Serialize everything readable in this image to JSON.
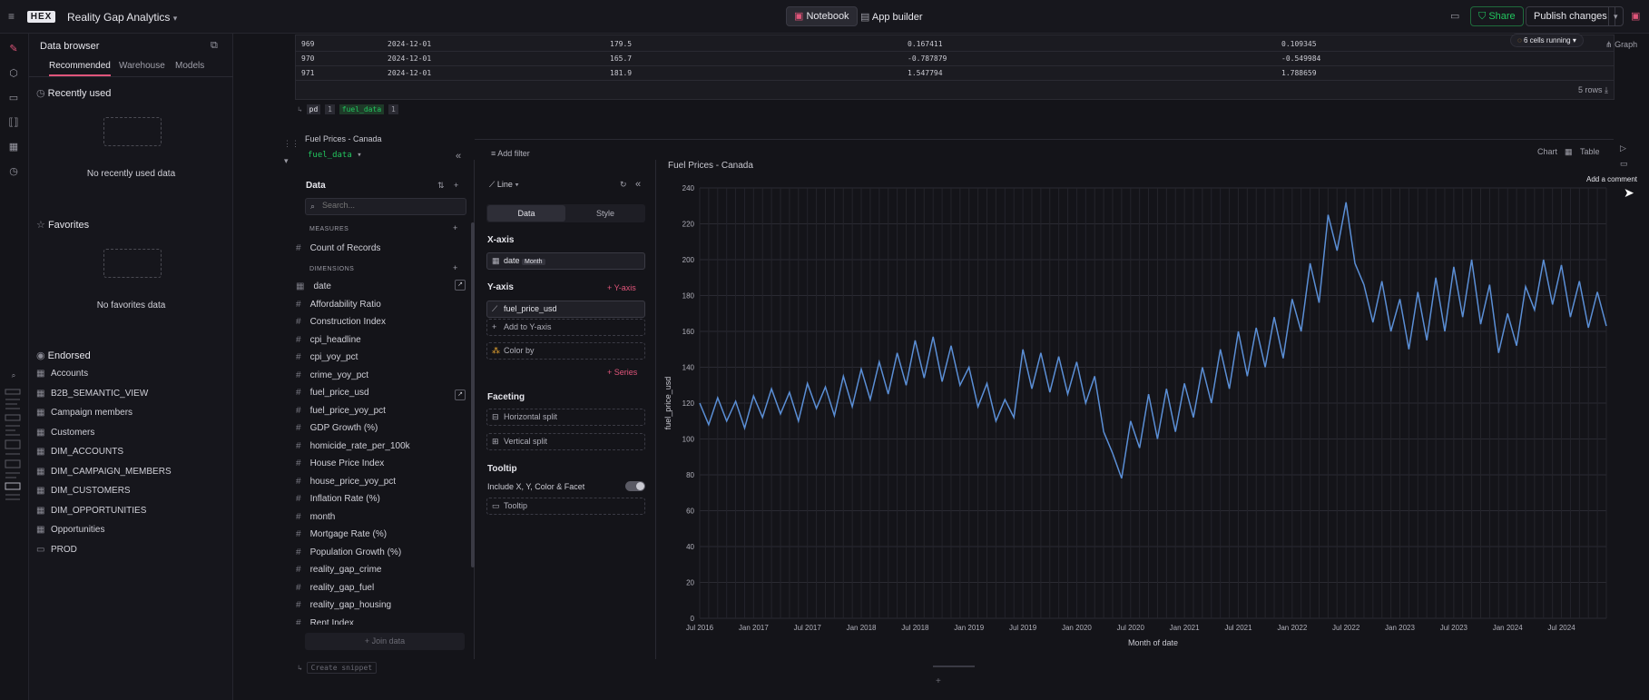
{
  "topbar": {
    "app_title": "Reality Gap Analytics",
    "logo": "HEX",
    "notebook_tab": "Notebook",
    "app_builder_tab": "App builder",
    "share_label": "Share",
    "publish_label": "Publish changes",
    "accent": "#22c55e"
  },
  "sidebar": {
    "title": "Data browser",
    "tabs": [
      "Recommended",
      "Warehouse",
      "Models"
    ],
    "recently_used": "Recently used",
    "no_recent": "No recently used data",
    "favorites": "Favorites",
    "no_favorites": "No favorites data",
    "endorsed": "Endorsed",
    "endorsed_items": [
      "Accounts",
      "B2B_SEMANTIC_VIEW",
      "Campaign members",
      "Customers",
      "DIM_ACCOUNTS",
      "DIM_CAMPAIGN_MEMBERS",
      "DIM_CUSTOMERS",
      "DIM_OPPORTUNITIES",
      "Opportunities",
      "PROD"
    ]
  },
  "table": {
    "rows": [
      [
        "969",
        "2024-12-01",
        "179.5",
        "0.167411",
        "0.109345"
      ],
      [
        "970",
        "2024-12-01",
        "165.7",
        "-0.787879",
        "-0.549984"
      ],
      [
        "971",
        "2024-12-01",
        "181.9",
        "1.547794",
        "1.788659"
      ]
    ],
    "rows_count": "5 rows",
    "cells_running": "6 cells running",
    "graph_label": "Graph",
    "out_pd": "pd",
    "out_fuel": "fuel_data",
    "out_n": "1"
  },
  "cell": {
    "title": "Fuel Prices - Canada",
    "dataset": "fuel_data",
    "add_filter": "Add filter",
    "chart_tab": "Chart",
    "table_tab": "Table",
    "add_comment": "Add a comment",
    "create_snippet": "Create snippet"
  },
  "data_panel": {
    "title": "Data",
    "search_placeholder": "Search...",
    "measures": "MEASURES",
    "measure_items": [
      "Count of Records"
    ],
    "dimensions": "DIMENSIONS",
    "dimension_items": [
      "date",
      "Affordability Ratio",
      "Construction Index",
      "cpi_headline",
      "cpi_yoy_pct",
      "crime_yoy_pct",
      "fuel_price_usd",
      "fuel_price_yoy_pct",
      "GDP Growth (%)",
      "homicide_rate_per_100k",
      "House Price Index",
      "house_price_yoy_pct",
      "Inflation Rate (%)",
      "month",
      "Mortgage Rate (%)",
      "Population Growth (%)",
      "reality_gap_crime",
      "reality_gap_fuel",
      "reality_gap_housing",
      "Rent Index"
    ],
    "join_data": "Join data"
  },
  "config": {
    "chart_type": "Line",
    "tab_data": "Data",
    "tab_style": "Style",
    "x_axis": "X-axis",
    "x_field": "date",
    "x_agg": "Month",
    "y_axis": "Y-axis",
    "add_y_btn": "Y-axis",
    "y_field": "fuel_price_usd",
    "add_to_y": "Add to Y-axis",
    "color_by": "Color by",
    "series_btn": "Series",
    "faceting": "Faceting",
    "h_split": "Horizontal split",
    "v_split": "Vertical split",
    "tooltip": "Tooltip",
    "include_xy": "Include X, Y, Color & Facet",
    "tooltip_box": "Tooltip"
  },
  "chart_data": {
    "type": "line",
    "title": "Fuel Prices - Canada",
    "xlabel": "Month of date",
    "ylabel": "fuel_price_usd",
    "ylim": [
      0,
      240
    ],
    "yticks": [
      0,
      20,
      40,
      60,
      80,
      100,
      120,
      140,
      160,
      180,
      200,
      220,
      240
    ],
    "xticks": [
      "Jul 2016",
      "Jan 2017",
      "Jul 2017",
      "Jan 2018",
      "Jul 2018",
      "Jan 2019",
      "Jul 2019",
      "Jan 2020",
      "Jul 2020",
      "Jan 2021",
      "Jul 2021",
      "Jan 2022",
      "Jul 2022",
      "Jan 2023",
      "Jul 2023",
      "Jan 2024",
      "Jul 2024"
    ],
    "xrange": [
      "2016-07",
      "2024-12"
    ],
    "grid": true,
    "color": "#5b8fd6",
    "series": [
      {
        "points": [
          [
            "2016-07",
            120
          ],
          [
            "2016-08",
            108
          ],
          [
            "2016-09",
            123
          ],
          [
            "2016-10",
            110
          ],
          [
            "2016-11",
            121
          ],
          [
            "2016-12",
            106
          ],
          [
            "2017-01",
            124
          ],
          [
            "2017-02",
            112
          ],
          [
            "2017-03",
            128
          ],
          [
            "2017-04",
            114
          ],
          [
            "2017-05",
            126
          ],
          [
            "2017-06",
            110
          ],
          [
            "2017-07",
            131
          ],
          [
            "2017-08",
            117
          ],
          [
            "2017-09",
            129
          ],
          [
            "2017-10",
            113
          ],
          [
            "2017-11",
            135
          ],
          [
            "2017-12",
            118
          ],
          [
            "2018-01",
            139
          ],
          [
            "2018-02",
            122
          ],
          [
            "2018-03",
            143
          ],
          [
            "2018-04",
            125
          ],
          [
            "2018-05",
            148
          ],
          [
            "2018-06",
            130
          ],
          [
            "2018-07",
            155
          ],
          [
            "2018-08",
            134
          ],
          [
            "2018-09",
            157
          ],
          [
            "2018-10",
            132
          ],
          [
            "2018-11",
            152
          ],
          [
            "2018-12",
            130
          ],
          [
            "2019-01",
            140
          ],
          [
            "2019-02",
            118
          ],
          [
            "2019-03",
            131
          ],
          [
            "2019-04",
            110
          ],
          [
            "2019-05",
            122
          ],
          [
            "2019-06",
            112
          ],
          [
            "2019-07",
            150
          ],
          [
            "2019-08",
            128
          ],
          [
            "2019-09",
            148
          ],
          [
            "2019-10",
            126
          ],
          [
            "2019-11",
            146
          ],
          [
            "2019-12",
            125
          ],
          [
            "2020-01",
            143
          ],
          [
            "2020-02",
            120
          ],
          [
            "2020-03",
            135
          ],
          [
            "2020-04",
            104
          ],
          [
            "2020-05",
            92
          ],
          [
            "2020-06",
            78
          ],
          [
            "2020-07",
            110
          ],
          [
            "2020-08",
            95
          ],
          [
            "2020-09",
            125
          ],
          [
            "2020-10",
            100
          ],
          [
            "2020-11",
            128
          ],
          [
            "2020-12",
            104
          ],
          [
            "2021-01",
            131
          ],
          [
            "2021-02",
            112
          ],
          [
            "2021-03",
            140
          ],
          [
            "2021-04",
            120
          ],
          [
            "2021-05",
            150
          ],
          [
            "2021-06",
            128
          ],
          [
            "2021-07",
            160
          ],
          [
            "2021-08",
            135
          ],
          [
            "2021-09",
            162
          ],
          [
            "2021-10",
            140
          ],
          [
            "2021-11",
            168
          ],
          [
            "2021-12",
            145
          ],
          [
            "2022-01",
            178
          ],
          [
            "2022-02",
            160
          ],
          [
            "2022-03",
            198
          ],
          [
            "2022-04",
            176
          ],
          [
            "2022-05",
            225
          ],
          [
            "2022-06",
            205
          ],
          [
            "2022-07",
            232
          ],
          [
            "2022-08",
            198
          ],
          [
            "2022-09",
            186
          ],
          [
            "2022-10",
            165
          ],
          [
            "2022-11",
            188
          ],
          [
            "2022-12",
            160
          ],
          [
            "2023-01",
            178
          ],
          [
            "2023-02",
            150
          ],
          [
            "2023-03",
            182
          ],
          [
            "2023-04",
            155
          ],
          [
            "2023-05",
            190
          ],
          [
            "2023-06",
            160
          ],
          [
            "2023-07",
            196
          ],
          [
            "2023-08",
            168
          ],
          [
            "2023-09",
            200
          ],
          [
            "2023-10",
            164
          ],
          [
            "2023-11",
            186
          ],
          [
            "2023-12",
            148
          ],
          [
            "2024-01",
            170
          ],
          [
            "2024-02",
            152
          ],
          [
            "2024-03",
            185
          ],
          [
            "2024-04",
            172
          ],
          [
            "2024-05",
            200
          ],
          [
            "2024-06",
            175
          ],
          [
            "2024-07",
            197
          ],
          [
            "2024-08",
            168
          ],
          [
            "2024-09",
            188
          ],
          [
            "2024-10",
            162
          ],
          [
            "2024-11",
            182
          ],
          [
            "2024-12",
            163
          ]
        ]
      }
    ]
  }
}
